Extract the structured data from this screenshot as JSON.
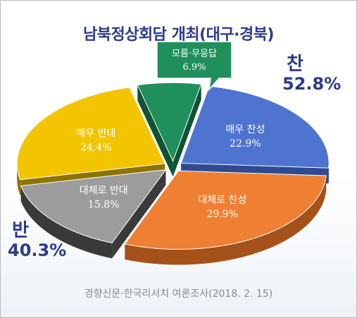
{
  "title": "남북정상회담 개최(대구·경북)",
  "source": "경향신문·한국리서치 여론조사(2018. 2. 15)",
  "groups": {
    "agree": {
      "label": "찬",
      "total": "52.8%"
    },
    "oppose": {
      "label": "반",
      "total": "40.3%"
    }
  },
  "chart_data": {
    "type": "pie",
    "title": "남북정상회담 개최(대구·경북)",
    "slices": [
      {
        "label": "매우 찬성",
        "value": 22.9,
        "display": "22.9%",
        "color": "#4f74cf",
        "side": "#2f4a8f"
      },
      {
        "label": "대체로 찬성",
        "value": 29.9,
        "display": "29.9%",
        "color": "#ef7f33",
        "side": "#a4521a"
      },
      {
        "label": "대체로 반대",
        "value": 15.8,
        "display": "15.8%",
        "color": "#9c9c9c",
        "side": "#3a3a3a"
      },
      {
        "label": "매우 반대",
        "value": 24.4,
        "display": "24.4%",
        "color": "#f3c500",
        "side": "#8f7300"
      },
      {
        "label": "모름·무응답",
        "value": 6.9,
        "display": "6.9%",
        "color": "#1f8f5c",
        "side": "#0f5234"
      }
    ]
  }
}
